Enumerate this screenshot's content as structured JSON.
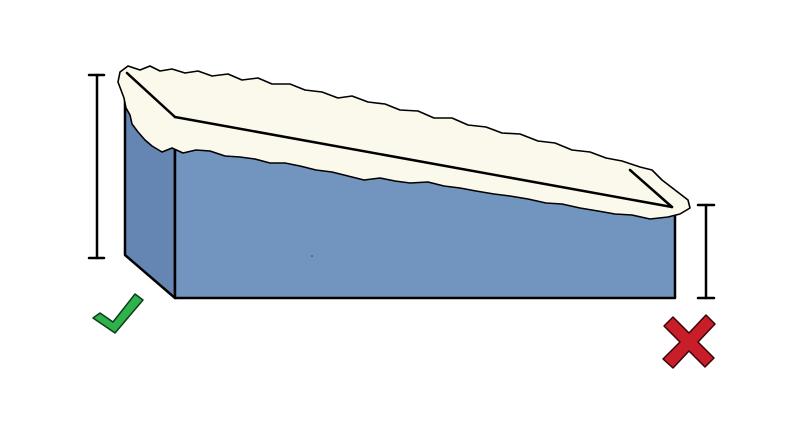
{
  "diagram": {
    "colors": {
      "block_front": "#7295c0",
      "block_side": "#6585b3",
      "snow": "#fbf9ec",
      "outline": "#000000",
      "check": "#2fb14c",
      "cross": "#c81e2a"
    },
    "left_indicator": {
      "mark": "check",
      "icon": "check-icon"
    },
    "right_indicator": {
      "mark": "cross",
      "icon": "cross-icon"
    }
  }
}
